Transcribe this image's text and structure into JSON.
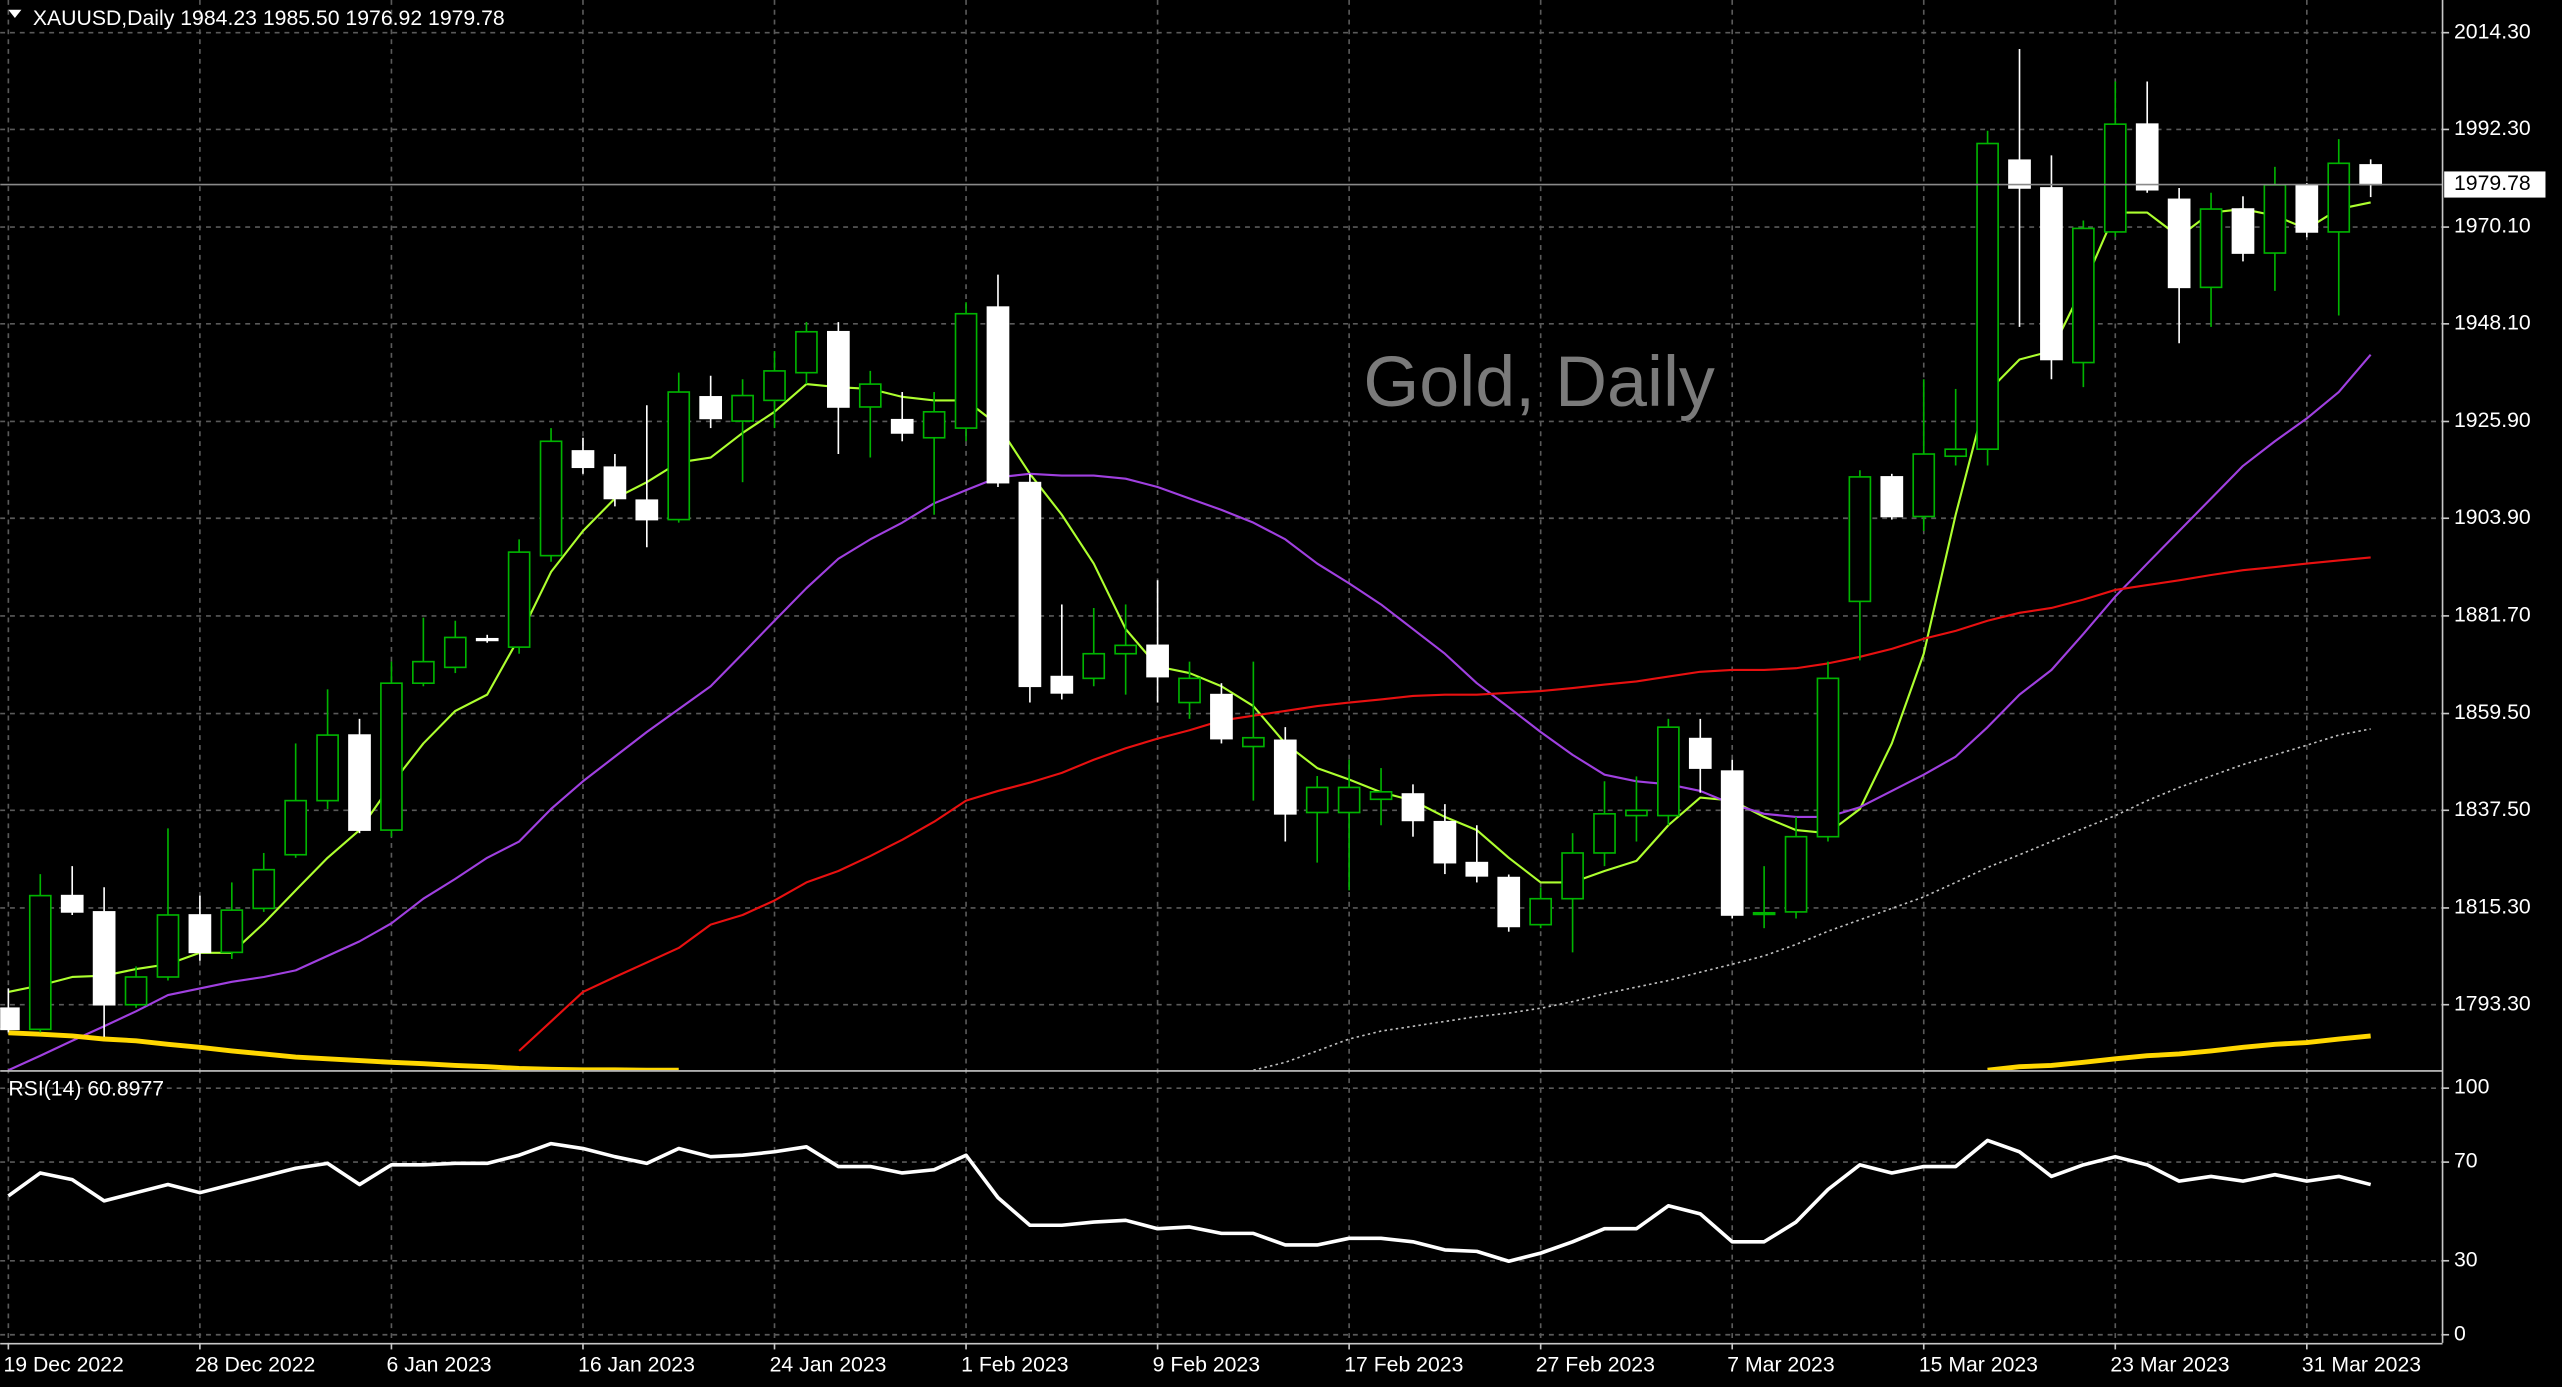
{
  "chart_data": [
    {
      "type": "candlestick",
      "title": "XAUUSD,Daily  1984.23 1985.50 1976.92 1979.78",
      "watermark": "Gold, Daily",
      "background": "#000000",
      "up_color": "#00b400",
      "down_color": "#ffffff",
      "grid": true,
      "categories": [
        "19 Dec 2022",
        null,
        null,
        null,
        null,
        null,
        "28 Dec 2022",
        null,
        null,
        null,
        null,
        null,
        "6 Jan 2023",
        null,
        null,
        null,
        null,
        null,
        "16 Jan 2023",
        null,
        null,
        null,
        null,
        null,
        "24 Jan 2023",
        null,
        null,
        null,
        null,
        null,
        "1 Feb 2023",
        null,
        null,
        null,
        null,
        null,
        "9 Feb 2023",
        null,
        null,
        null,
        null,
        null,
        "17 Feb 2023",
        null,
        null,
        null,
        null,
        null,
        "27 Feb 2023",
        null,
        null,
        null,
        null,
        null,
        "7 Mar 2023",
        null,
        null,
        null,
        null,
        null,
        "15 Mar 2023",
        null,
        null,
        null,
        null,
        null,
        "23 Mar 2023",
        null,
        null,
        null,
        null,
        null,
        "31 Mar 2023",
        null,
        null
      ],
      "open": [
        1792.5,
        1787.7,
        1818.1,
        1814.4,
        1793.3,
        1799.6,
        1813.7,
        1805.2,
        1815.2,
        1827.4,
        1839.7,
        1854.6,
        1833.0,
        1866.4,
        1870.0,
        1876.5,
        1874.6,
        1895.4,
        1919.2,
        1915.5,
        1908.0,
        1903.6,
        1931.5,
        1926.0,
        1930.7,
        1937.0,
        1946.3,
        1929.2,
        1926.3,
        1922.2,
        1924.4,
        1951.9,
        1912.0,
        1867.9,
        1867.5,
        1873.1,
        1875.0,
        1862.0,
        1863.8,
        1852.0,
        1853.4,
        1837.0,
        1837.0,
        1840.0,
        1841.2,
        1834.9,
        1825.6,
        1822.2,
        1811.5,
        1817.4,
        1827.8,
        1836.3,
        1836.3,
        1853.8,
        1846.4,
        1814.0,
        1814.4,
        1831.5,
        1885.0,
        1913.3,
        1904.3,
        1918.0,
        1919.6,
        1985.3,
        1979.0,
        1939.3,
        1969.0,
        1993.5,
        1976.4,
        1956.4,
        1974.2,
        1964.2,
        1979.7,
        1969.0,
        1984.23
      ],
      "high": [
        1797.0,
        1823.0,
        1824.8,
        1820.0,
        1802.0,
        1833.4,
        1818.1,
        1821.1,
        1827.8,
        1852.7,
        1865.0,
        1858.3,
        1871.3,
        1881.3,
        1880.6,
        1877.4,
        1899.1,
        1924.4,
        1922.2,
        1918.5,
        1929.6,
        1937.0,
        1936.3,
        1935.5,
        1941.9,
        1948.5,
        1948.5,
        1937.4,
        1932.6,
        1932.6,
        1953.0,
        1959.3,
        1914.0,
        1884.3,
        1883.5,
        1884.3,
        1889.8,
        1871.3,
        1866.4,
        1871.3,
        1856.4,
        1845.3,
        1849.0,
        1847.1,
        1843.4,
        1838.9,
        1834.1,
        1822.9,
        1820.0,
        1832.3,
        1844.1,
        1845.2,
        1858.3,
        1858.3,
        1849.0,
        1824.8,
        1836.0,
        1871.3,
        1914.8,
        1914.0,
        1935.5,
        1933.3,
        1992.0,
        2010.6,
        1986.4,
        1971.6,
        2003.2,
        2003.2,
        1979.0,
        1977.9,
        1977.1,
        1983.8,
        1980.1,
        1990.1,
        1985.5
      ],
      "low": [
        1787.0,
        1787.0,
        1813.7,
        1786.0,
        1792.6,
        1798.8,
        1803.3,
        1803.7,
        1814.4,
        1826.7,
        1837.8,
        1832.3,
        1831.5,
        1865.7,
        1868.7,
        1875.6,
        1873.1,
        1894.0,
        1914.0,
        1906.6,
        1897.3,
        1902.9,
        1924.4,
        1912.1,
        1924.4,
        1934.4,
        1918.5,
        1917.7,
        1921.4,
        1904.7,
        1921.4,
        1911.0,
        1862.0,
        1862.7,
        1865.7,
        1863.8,
        1862.0,
        1858.3,
        1852.7,
        1839.7,
        1830.4,
        1825.6,
        1819.3,
        1834.1,
        1831.5,
        1823.0,
        1821.1,
        1809.9,
        1810.7,
        1805.2,
        1824.8,
        1830.4,
        1834.1,
        1841.5,
        1812.9,
        1810.7,
        1812.9,
        1830.4,
        1871.6,
        1903.6,
        1901.0,
        1915.9,
        1915.9,
        1947.4,
        1935.5,
        1933.7,
        1967.9,
        1977.9,
        1943.7,
        1947.4,
        1962.3,
        1955.6,
        1967.8,
        1950.0,
        1976.92
      ],
      "close": [
        1787.7,
        1818.1,
        1814.4,
        1793.3,
        1799.6,
        1813.7,
        1805.2,
        1814.8,
        1824.0,
        1839.7,
        1854.6,
        1833.0,
        1866.4,
        1871.3,
        1876.8,
        1876.2,
        1896.2,
        1921.4,
        1915.5,
        1908.4,
        1903.6,
        1932.6,
        1926.6,
        1931.8,
        1937.4,
        1946.3,
        1929.2,
        1934.4,
        1923.3,
        1928.1,
        1950.4,
        1912.0,
        1865.7,
        1864.2,
        1873.1,
        1875.0,
        1867.9,
        1867.5,
        1853.8,
        1854.0,
        1836.7,
        1842.7,
        1842.7,
        1841.7,
        1835.2,
        1825.6,
        1822.6,
        1811.1,
        1817.4,
        1827.8,
        1836.7,
        1837.5,
        1856.4,
        1847.1,
        1813.7,
        1814.2,
        1831.5,
        1867.5,
        1913.3,
        1904.3,
        1918.5,
        1919.6,
        1989.1,
        1979.0,
        1940.0,
        1969.8,
        1993.5,
        1978.6,
        1956.4,
        1974.2,
        1964.2,
        1979.7,
        1969.0,
        1984.6,
        1979.78
      ],
      "series": [
        {
          "color": "#adff2f",
          "style": "solid",
          "values": [
            1796.2,
            1797.7,
            1799.6,
            1799.9,
            1801.4,
            1802.5,
            1805.1,
            1805.1,
            1811.8,
            1819.3,
            1826.7,
            1833.0,
            1843.4,
            1852.7,
            1860.1,
            1863.8,
            1876.8,
            1891.7,
            1901.0,
            1908.4,
            1912.1,
            1916.6,
            1917.7,
            1923.3,
            1928.1,
            1934.4,
            1933.7,
            1933.3,
            1931.5,
            1930.7,
            1930.7,
            1925.1,
            1914.0,
            1904.7,
            1893.6,
            1878.7,
            1870.2,
            1868.7,
            1865.7,
            1861.2,
            1852.7,
            1847.1,
            1844.5,
            1841.6,
            1839.7,
            1836.0,
            1833.0,
            1826.7,
            1821.1,
            1821.1,
            1823.7,
            1826.0,
            1834.1,
            1840.4,
            1839.7,
            1836.0,
            1833.0,
            1832.3,
            1837.8,
            1852.7,
            1873.1,
            1904.7,
            1932.6,
            1940.0,
            1941.9,
            1956.7,
            1973.4,
            1973.4,
            1967.9,
            1973.4,
            1974.2,
            1972.7,
            1969.7,
            1974.2,
            1975.7
          ]
        },
        {
          "color": "#a040e0",
          "style": "solid",
          "values": [
            1778.4,
            1781.7,
            1785.1,
            1788.4,
            1791.8,
            1795.5,
            1797.0,
            1798.5,
            1799.6,
            1801.1,
            1804.4,
            1807.7,
            1811.8,
            1817.4,
            1821.9,
            1826.7,
            1830.4,
            1837.8,
            1844.1,
            1849.7,
            1855.3,
            1860.5,
            1865.7,
            1873.1,
            1880.6,
            1888.0,
            1894.7,
            1899.1,
            1902.9,
            1907.3,
            1910.3,
            1913.2,
            1914.0,
            1913.6,
            1913.6,
            1912.9,
            1911.0,
            1908.4,
            1905.8,
            1902.9,
            1899.1,
            1893.6,
            1889.1,
            1884.3,
            1878.7,
            1873.1,
            1866.4,
            1860.9,
            1855.3,
            1850.1,
            1845.6,
            1844.1,
            1843.4,
            1841.9,
            1838.9,
            1836.7,
            1836.0,
            1836.0,
            1838.2,
            1841.9,
            1845.6,
            1849.7,
            1856.4,
            1863.8,
            1869.4,
            1877.6,
            1886.1,
            1893.6,
            1901.0,
            1908.4,
            1915.8,
            1921.4,
            1926.6,
            1932.6,
            1941.1
          ]
        },
        {
          "color": "#e81010",
          "style": "solid",
          "values": [
            null,
            null,
            null,
            null,
            null,
            null,
            null,
            null,
            null,
            null,
            null,
            null,
            null,
            null,
            null,
            null,
            1782.8,
            1789.5,
            1796.2,
            1799.6,
            1802.9,
            1806.2,
            1811.5,
            1813.7,
            1817.0,
            1821.1,
            1823.7,
            1827.1,
            1830.8,
            1834.9,
            1839.7,
            1841.9,
            1843.8,
            1846.0,
            1849.0,
            1851.6,
            1853.8,
            1855.7,
            1857.9,
            1859.0,
            1860.1,
            1861.2,
            1862.0,
            1862.7,
            1863.5,
            1863.8,
            1863.8,
            1864.2,
            1864.6,
            1865.3,
            1866.1,
            1866.8,
            1867.9,
            1869.0,
            1869.4,
            1869.4,
            1869.8,
            1870.9,
            1872.4,
            1874.2,
            1876.5,
            1878.3,
            1880.6,
            1882.4,
            1883.5,
            1885.4,
            1887.6,
            1888.7,
            1889.8,
            1891.0,
            1892.1,
            1892.8,
            1893.6,
            1894.3,
            1895.0
          ]
        },
        {
          "color": "#c0c0c0",
          "style": "dotted",
          "values": [
            null,
            null,
            null,
            null,
            null,
            null,
            null,
            null,
            null,
            null,
            null,
            null,
            null,
            null,
            null,
            null,
            null,
            null,
            null,
            null,
            null,
            null,
            null,
            null,
            null,
            null,
            null,
            null,
            null,
            null,
            null,
            null,
            null,
            null,
            null,
            null,
            null,
            null,
            null,
            1778.4,
            1780.2,
            1782.8,
            1785.5,
            1787.3,
            1788.4,
            1789.5,
            1790.6,
            1791.4,
            1792.5,
            1794.0,
            1795.8,
            1797.3,
            1798.8,
            1800.7,
            1802.5,
            1804.4,
            1807.0,
            1810.0,
            1812.6,
            1815.2,
            1817.8,
            1821.1,
            1824.5,
            1827.4,
            1830.4,
            1833.4,
            1836.3,
            1839.7,
            1842.7,
            1845.3,
            1847.9,
            1850.1,
            1852.3,
            1854.6,
            1856.0
          ]
        },
        {
          "color": "#ffd700",
          "style": "thick",
          "values": [
            1786.9,
            1786.6,
            1786.2,
            1785.5,
            1785.1,
            1784.3,
            1783.6,
            1782.8,
            1782.1,
            1781.4,
            1781.0,
            1780.6,
            1780.2,
            1779.9,
            1779.5,
            1779.2,
            1778.8,
            1778.6,
            1778.5,
            1778.5,
            1778.4,
            1778.4,
            null,
            null,
            null,
            null,
            null,
            null,
            null,
            null,
            null,
            null,
            null,
            null,
            null,
            null,
            null,
            null,
            null,
            null,
            null,
            null,
            null,
            null,
            null,
            null,
            null,
            null,
            null,
            null,
            null,
            null,
            null,
            null,
            null,
            null,
            null,
            null,
            null,
            null,
            null,
            null,
            1778.4,
            1779.2,
            1779.5,
            1780.2,
            1781.0,
            1781.7,
            1782.1,
            1782.8,
            1783.6,
            1784.3,
            1784.7,
            1785.5,
            1786.2
          ]
        }
      ],
      "bid": {
        "value": 1979.78,
        "label": "1979.78"
      },
      "ylim": [
        1778.44,
        2021.73
      ],
      "yticks": [
        {
          "value": 2014.3,
          "label": "2014.30"
        },
        {
          "value": 1992.3,
          "label": "1992.30"
        },
        {
          "value": 1970.1,
          "label": "1970.10"
        },
        {
          "value": 1948.1,
          "label": "1948.10"
        },
        {
          "value": 1925.9,
          "label": "1925.90"
        },
        {
          "value": 1903.9,
          "label": "1903.90"
        },
        {
          "value": 1881.7,
          "label": "1881.70"
        },
        {
          "value": 1859.5,
          "label": "1859.50"
        },
        {
          "value": 1837.5,
          "label": "1837.50"
        },
        {
          "value": 1815.3,
          "label": "1815.30"
        },
        {
          "value": 1793.3,
          "label": "1793.30"
        }
      ]
    },
    {
      "type": "line",
      "title": "RSI(14) 60.8977",
      "grid": true,
      "series": [
        {
          "color": "#ffffff",
          "values": [
            56.3,
            65.6,
            62.9,
            54.3,
            57.6,
            60.9,
            57.6,
            60.9,
            64.2,
            67.5,
            69.5,
            60.9,
            68.9,
            68.9,
            69.5,
            69.5,
            72.8,
            77.5,
            75.5,
            72.2,
            69.5,
            75.5,
            72.2,
            72.8,
            74.2,
            76.2,
            68.2,
            68.2,
            65.6,
            66.9,
            72.8,
            55.6,
            44.4,
            44.4,
            45.7,
            46.4,
            43.0,
            43.7,
            41.1,
            41.1,
            36.4,
            36.4,
            39.1,
            39.1,
            37.7,
            34.4,
            33.8,
            29.8,
            33.1,
            37.7,
            43.0,
            43.0,
            52.3,
            49.0,
            37.7,
            37.7,
            45.7,
            58.9,
            68.9,
            65.6,
            68.2,
            68.2,
            78.8,
            74.2,
            64.2,
            68.9,
            72.2,
            68.9,
            62.3,
            64.2,
            62.3,
            64.9,
            62.3,
            64.2,
            60.8977
          ]
        }
      ],
      "ylim": [
        -3.3,
        106
      ],
      "yticks": [
        100,
        70,
        30,
        0
      ]
    }
  ]
}
